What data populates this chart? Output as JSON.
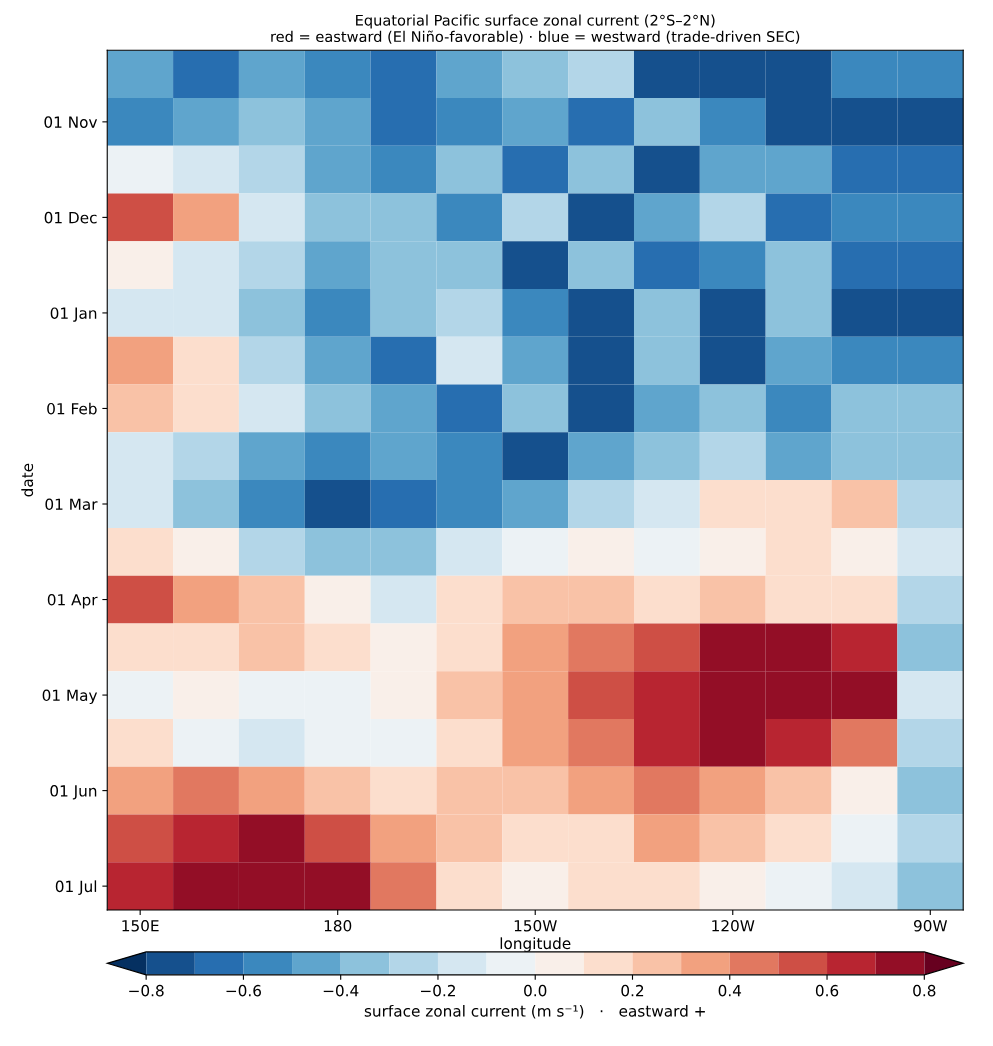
{
  "chart_data": {
    "type": "heatmap",
    "title": "Equatorial Pacific surface zonal current (2°S–2°N)",
    "subtitle": "red = eastward (El Niño-favorable) · blue = westward (trade-driven SEC)",
    "xlabel": "longitude",
    "ylabel": "date",
    "clabel": "surface zonal current (m s⁻¹)   ·   eastward +",
    "categories": [
      "150E",
      null,
      null,
      "180",
      null,
      null,
      "150W",
      null,
      null,
      "120W",
      null,
      null,
      "90W"
    ],
    "y_categories": [
      null,
      "01 Nov",
      null,
      "01 Dec",
      null,
      "01 Jan",
      null,
      "01 Feb",
      null,
      "01 Mar",
      null,
      "01 Apr",
      null,
      "01 May",
      null,
      "01 Jun",
      null,
      "01 Jul"
    ],
    "cells": [
      [
        -0.45,
        -0.65,
        -0.45,
        -0.55,
        -0.65,
        -0.45,
        -0.35,
        -0.25,
        -0.75,
        -0.75,
        -0.75,
        -0.55,
        -0.55
      ],
      [
        -0.55,
        -0.45,
        -0.35,
        -0.45,
        -0.65,
        -0.55,
        -0.45,
        -0.65,
        -0.35,
        -0.55,
        -0.75,
        -0.75,
        -0.75
      ],
      [
        -0.05,
        -0.15,
        -0.25,
        -0.45,
        -0.55,
        -0.35,
        -0.65,
        -0.35,
        -0.75,
        -0.45,
        -0.45,
        -0.65,
        -0.65
      ],
      [
        0.55,
        0.35,
        -0.15,
        -0.35,
        -0.35,
        -0.55,
        -0.25,
        -0.75,
        -0.45,
        -0.25,
        -0.65,
        -0.55,
        -0.55
      ],
      [
        0.05,
        -0.15,
        -0.25,
        -0.45,
        -0.35,
        -0.35,
        -0.75,
        -0.35,
        -0.65,
        -0.55,
        -0.35,
        -0.65,
        -0.65
      ],
      [
        -0.15,
        -0.15,
        -0.35,
        -0.55,
        -0.35,
        -0.25,
        -0.55,
        -0.75,
        -0.35,
        -0.75,
        -0.35,
        -0.75,
        -0.75
      ],
      [
        0.35,
        0.15,
        -0.25,
        -0.45,
        -0.65,
        -0.15,
        -0.45,
        -0.75,
        -0.35,
        -0.75,
        -0.45,
        -0.55,
        -0.55
      ],
      [
        0.25,
        0.15,
        -0.15,
        -0.35,
        -0.45,
        -0.65,
        -0.35,
        -0.75,
        -0.45,
        -0.35,
        -0.55,
        -0.35,
        -0.35
      ],
      [
        -0.15,
        -0.25,
        -0.45,
        -0.55,
        -0.45,
        -0.55,
        -0.75,
        -0.45,
        -0.35,
        -0.25,
        -0.45,
        -0.35,
        -0.35
      ],
      [
        -0.15,
        -0.35,
        -0.55,
        -0.75,
        -0.65,
        -0.55,
        -0.45,
        -0.25,
        -0.15,
        0.15,
        0.15,
        0.25,
        -0.25
      ],
      [
        0.15,
        0.05,
        -0.25,
        -0.35,
        -0.35,
        -0.15,
        -0.05,
        0.05,
        -0.05,
        0.05,
        0.15,
        0.05,
        -0.15
      ],
      [
        0.55,
        0.35,
        0.25,
        0.05,
        -0.15,
        0.15,
        0.25,
        0.25,
        0.15,
        0.25,
        0.15,
        0.15,
        -0.25
      ],
      [
        0.15,
        0.15,
        0.25,
        0.15,
        0.05,
        0.15,
        0.35,
        0.45,
        0.55,
        0.75,
        0.75,
        0.65,
        -0.35
      ],
      [
        -0.05,
        0.05,
        -0.05,
        -0.05,
        0.05,
        0.25,
        0.35,
        0.55,
        0.65,
        0.75,
        0.75,
        0.75,
        -0.15
      ],
      [
        0.15,
        -0.05,
        -0.15,
        -0.05,
        -0.05,
        0.15,
        0.35,
        0.45,
        0.65,
        0.75,
        0.65,
        0.45,
        -0.25
      ],
      [
        0.35,
        0.45,
        0.35,
        0.25,
        0.15,
        0.25,
        0.25,
        0.35,
        0.45,
        0.35,
        0.25,
        0.05,
        -0.35
      ],
      [
        0.55,
        0.65,
        0.75,
        0.55,
        0.35,
        0.25,
        0.15,
        0.15,
        0.35,
        0.25,
        0.15,
        -0.05,
        -0.25
      ],
      [
        0.65,
        0.75,
        0.75,
        0.75,
        0.45,
        0.15,
        0.05,
        0.15,
        0.15,
        0.05,
        -0.05,
        -0.15,
        -0.35
      ]
    ],
    "clim": [
      -0.8,
      0.8
    ],
    "cticks": [
      {
        "value": -0.8,
        "label": "−0.8"
      },
      {
        "value": -0.6,
        "label": "−0.6"
      },
      {
        "value": -0.4,
        "label": "−0.4"
      },
      {
        "value": -0.2,
        "label": "−0.2"
      },
      {
        "value": 0.0,
        "label": "0.0"
      },
      {
        "value": 0.2,
        "label": "0.2"
      },
      {
        "value": 0.4,
        "label": "0.4"
      },
      {
        "value": 0.6,
        "label": "0.6"
      },
      {
        "value": 0.8,
        "label": "0.8"
      }
    ]
  }
}
